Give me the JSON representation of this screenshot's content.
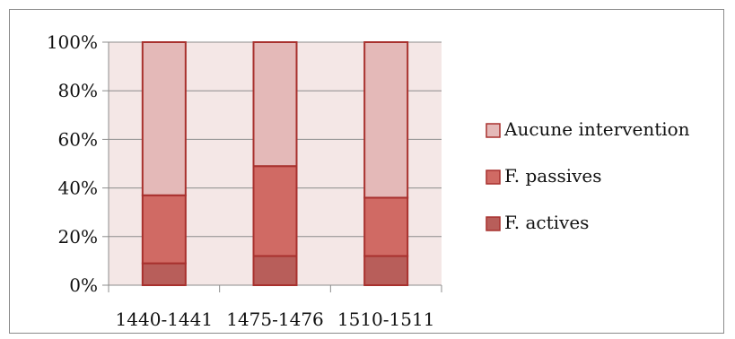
{
  "chart_data": {
    "type": "bar",
    "stacked": true,
    "percent": true,
    "categories": [
      "1440-1441",
      "1475-1476",
      "1510-1511"
    ],
    "series": [
      {
        "name": "F. actives",
        "values": [
          9,
          12,
          12
        ],
        "color": "#b85e5a"
      },
      {
        "name": "F. passives",
        "values": [
          28,
          37,
          24
        ],
        "color": "#d06a64"
      },
      {
        "name": "Aucune intervention",
        "values": [
          63,
          51,
          64
        ],
        "color": "#e4b9b8"
      }
    ],
    "ylim": [
      0,
      100
    ],
    "yticks": [
      "0%",
      "20%",
      "40%",
      "60%",
      "80%",
      "100%"
    ],
    "grid": true,
    "legend": "right",
    "plot_background": "#f4e7e6",
    "bar_border": "#a8312e",
    "legend_order": [
      "Aucune intervention",
      "F. passives",
      "F. actives"
    ]
  }
}
